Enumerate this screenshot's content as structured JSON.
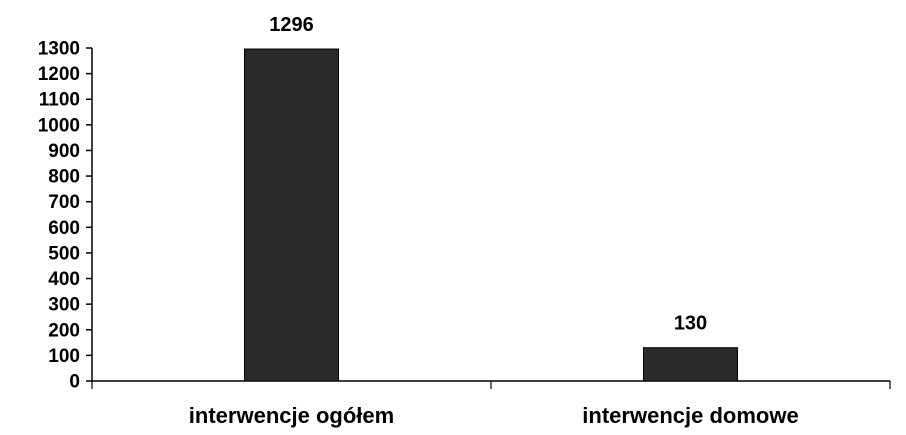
{
  "chart_data": {
    "type": "bar",
    "categories": [
      "interwencje ogółem",
      "interwencje domowe"
    ],
    "values": [
      1296,
      130
    ],
    "data_labels": [
      "1296",
      "130"
    ],
    "ylim": [
      0,
      1300
    ],
    "yticks": [
      "0",
      "100",
      "200",
      "300",
      "400",
      "500",
      "600",
      "700",
      "800",
      "900",
      "1000",
      "1100",
      "1200",
      "1300"
    ],
    "grid": false,
    "legend": "none",
    "bar_color": "#2a2a2a"
  }
}
